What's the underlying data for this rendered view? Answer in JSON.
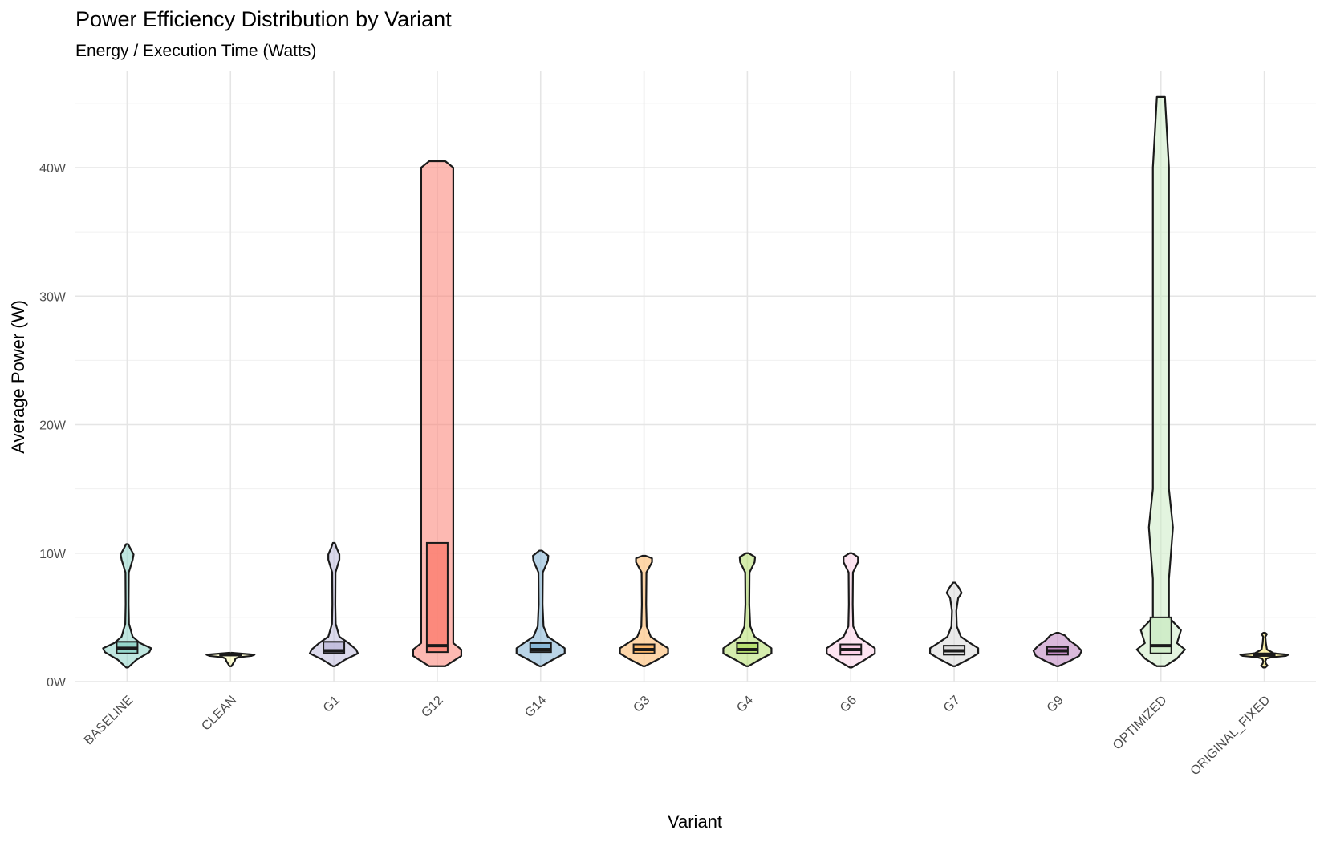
{
  "chart_data": {
    "type": "violin",
    "title": "Power Efficiency Distribution by Variant",
    "subtitle": "Energy / Execution Time (Watts)",
    "xlabel": "Variant",
    "ylabel": "Average Power (W)",
    "ylim": [
      0,
      46
    ],
    "y_ticks": [
      0,
      10,
      20,
      30,
      40
    ],
    "y_tick_labels": [
      "0W",
      "10W",
      "20W",
      "30W",
      "40W"
    ],
    "grid": true,
    "legend": "none",
    "categories": [
      "BASELINE",
      "CLEAN",
      "G1",
      "G12",
      "G14",
      "G3",
      "G4",
      "G6",
      "G7",
      "G9",
      "OPTIMIZED",
      "ORIGINAL_FIXED"
    ],
    "series": [
      {
        "category": "BASELINE",
        "min": 1.1,
        "q1": 2.2,
        "median": 2.6,
        "q3": 3.1,
        "max": 10.7,
        "color": "#8dd3c7",
        "profile": [
          [
            1.1,
            0.3
          ],
          [
            1.7,
            5
          ],
          [
            2.3,
            12
          ],
          [
            2.6,
            13
          ],
          [
            3.0,
            7
          ],
          [
            3.5,
            3
          ],
          [
            4.5,
            1
          ],
          [
            6,
            0.8
          ],
          [
            8.5,
            0.9
          ],
          [
            9.5,
            3
          ],
          [
            9.9,
            3.5
          ],
          [
            10.3,
            2
          ],
          [
            10.7,
            0.3
          ]
        ]
      },
      {
        "category": "CLEAN",
        "min": 1.2,
        "q1": 2.05,
        "median": 2.1,
        "q3": 2.15,
        "max": 2.2,
        "color": "#ffffb3",
        "profile": [
          [
            1.2,
            0.5
          ],
          [
            1.4,
            6
          ],
          [
            1.6,
            10
          ],
          [
            1.8,
            12
          ],
          [
            1.9,
            20
          ],
          [
            2.0,
            50
          ],
          [
            2.1,
            58
          ],
          [
            2.2,
            20
          ],
          [
            2.25,
            1
          ]
        ]
      },
      {
        "category": "G1",
        "min": 1.2,
        "q1": 2.2,
        "median": 2.4,
        "q3": 3.1,
        "max": 10.8,
        "color": "#bebada",
        "profile": [
          [
            1.2,
            0.3
          ],
          [
            1.7,
            6
          ],
          [
            2.2,
            13
          ],
          [
            2.5,
            12
          ],
          [
            3.0,
            8
          ],
          [
            3.5,
            3
          ],
          [
            4.5,
            1
          ],
          [
            6,
            0.8
          ],
          [
            8.5,
            0.9
          ],
          [
            9.5,
            3
          ],
          [
            9.9,
            3
          ],
          [
            10.4,
            1.5
          ],
          [
            10.8,
            0.3
          ]
        ]
      },
      {
        "category": "G12",
        "min": 1.2,
        "q1": 2.3,
        "median": 2.8,
        "q3": 10.8,
        "max": 40.5,
        "color": "#fb8072",
        "profile": [
          [
            1.2,
            0.5
          ],
          [
            2.0,
            1.5
          ],
          [
            2.5,
            1.5
          ],
          [
            3,
            1
          ],
          [
            4,
            1
          ],
          [
            6,
            1
          ],
          [
            10,
            1
          ],
          [
            15,
            1
          ],
          [
            20,
            1
          ],
          [
            30,
            1
          ],
          [
            40,
            1
          ],
          [
            40.5,
            0.5
          ]
        ]
      },
      {
        "category": "G14",
        "min": 1.2,
        "q1": 2.3,
        "median": 2.5,
        "q3": 3.0,
        "max": 10.2,
        "color": "#80b1d3",
        "profile": [
          [
            1.2,
            0.3
          ],
          [
            1.7,
            5
          ],
          [
            2.2,
            10
          ],
          [
            2.6,
            10
          ],
          [
            3.0,
            7
          ],
          [
            3.5,
            3
          ],
          [
            4.3,
            1.2
          ],
          [
            6,
            0.8
          ],
          [
            8.5,
            0.9
          ],
          [
            9.4,
            3
          ],
          [
            9.8,
            3.2
          ],
          [
            10.2,
            0.5
          ]
        ]
      },
      {
        "category": "G3",
        "min": 1.2,
        "q1": 2.2,
        "median": 2.5,
        "q3": 2.9,
        "max": 9.8,
        "color": "#fdb462",
        "profile": [
          [
            1.2,
            0.3
          ],
          [
            1.7,
            5
          ],
          [
            2.2,
            9
          ],
          [
            2.6,
            9
          ],
          [
            3.0,
            6
          ],
          [
            3.5,
            2.5
          ],
          [
            4.3,
            1
          ],
          [
            6,
            0.8
          ],
          [
            8.5,
            0.9
          ],
          [
            9.3,
            3
          ],
          [
            9.6,
            3
          ],
          [
            9.8,
            0.5
          ]
        ]
      },
      {
        "category": "G4",
        "min": 1.2,
        "q1": 2.2,
        "median": 2.5,
        "q3": 3.0,
        "max": 10.0,
        "color": "#b3de69",
        "profile": [
          [
            1.2,
            0.3
          ],
          [
            1.7,
            5
          ],
          [
            2.2,
            10
          ],
          [
            2.6,
            10
          ],
          [
            3.0,
            7
          ],
          [
            3.5,
            3
          ],
          [
            4.3,
            1.2
          ],
          [
            6,
            0.8
          ],
          [
            8.5,
            0.9
          ],
          [
            9.3,
            3
          ],
          [
            9.7,
            3.2
          ],
          [
            10.0,
            0.5
          ]
        ]
      },
      {
        "category": "G6",
        "min": 1.1,
        "q1": 2.1,
        "median": 2.5,
        "q3": 2.9,
        "max": 10.0,
        "color": "#fccde5",
        "profile": [
          [
            1.1,
            0.3
          ],
          [
            1.6,
            5
          ],
          [
            2.2,
            10
          ],
          [
            2.6,
            10
          ],
          [
            3.0,
            7
          ],
          [
            3.5,
            3
          ],
          [
            4.3,
            1
          ],
          [
            6,
            0.8
          ],
          [
            8.5,
            0.9
          ],
          [
            9.3,
            3
          ],
          [
            9.7,
            3
          ],
          [
            10.0,
            0.5
          ]
        ]
      },
      {
        "category": "G7",
        "min": 1.2,
        "q1": 2.1,
        "median": 2.4,
        "q3": 2.8,
        "max": 7.7,
        "color": "#d9d9d9",
        "profile": [
          [
            1.2,
            0.3
          ],
          [
            1.7,
            5
          ],
          [
            2.2,
            9
          ],
          [
            2.6,
            9
          ],
          [
            3.0,
            6
          ],
          [
            3.5,
            2.5
          ],
          [
            4.3,
            1
          ],
          [
            5.5,
            0.8
          ],
          [
            6.5,
            1.5
          ],
          [
            6.9,
            2.8
          ],
          [
            7.3,
            1.8
          ],
          [
            7.7,
            0.4
          ]
        ]
      },
      {
        "category": "G9",
        "min": 1.2,
        "q1": 2.1,
        "median": 2.4,
        "q3": 2.7,
        "max": 3.8,
        "color": "#bc80bd",
        "profile": [
          [
            1.2,
            0.3
          ],
          [
            1.6,
            5
          ],
          [
            2.0,
            9
          ],
          [
            2.4,
            10
          ],
          [
            2.8,
            8
          ],
          [
            3.2,
            5
          ],
          [
            3.6,
            3
          ],
          [
            3.8,
            0.5
          ]
        ]
      },
      {
        "category": "OPTIMIZED",
        "min": 1.2,
        "q1": 2.2,
        "median": 2.8,
        "q3": 5.0,
        "max": 45.5,
        "color": "#ccebc5",
        "profile": [
          [
            1.2,
            0.5
          ],
          [
            1.8,
            2
          ],
          [
            2.5,
            3
          ],
          [
            3,
            2
          ],
          [
            4,
            2.5
          ],
          [
            5,
            1
          ],
          [
            8,
            1
          ],
          [
            12,
            1.5
          ],
          [
            15,
            1
          ],
          [
            25,
            1
          ],
          [
            40,
            1
          ],
          [
            45.5,
            0.5
          ]
        ]
      },
      {
        "category": "ORIGINAL_FIXED",
        "min": 1.1,
        "q1": 2.0,
        "median": 2.1,
        "q3": 2.2,
        "max": 3.8,
        "color": "#ffed6f",
        "profile": [
          [
            1.1,
            0.5
          ],
          [
            1.25,
            6
          ],
          [
            1.4,
            3
          ],
          [
            1.6,
            2
          ],
          [
            1.8,
            4
          ],
          [
            1.9,
            14
          ],
          [
            2.0,
            40
          ],
          [
            2.1,
            45
          ],
          [
            2.2,
            18
          ],
          [
            2.5,
            5
          ],
          [
            3.0,
            3
          ],
          [
            3.5,
            2
          ],
          [
            3.7,
            5
          ],
          [
            3.8,
            0.5
          ]
        ]
      }
    ]
  }
}
